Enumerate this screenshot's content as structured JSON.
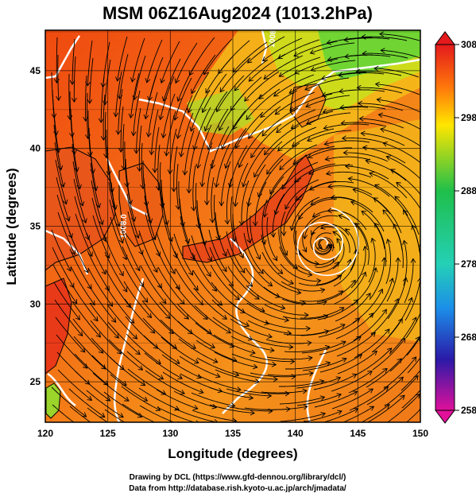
{
  "figure": {
    "title": "MSM 06Z16Aug2024 (1013.2hPa)",
    "xlabel": "Longitude (degrees)",
    "ylabel": "Latitude  (degrees)",
    "credit_line1": "Drawing by DCL (https://www.gfd-dennou.org/library/dcl/)",
    "credit_line2": "Data from http://database.rish.kyoto-u.ac.jp/arch/jmadata/"
  },
  "map": {
    "xlim": [
      120,
      150
    ],
    "ylim": [
      22.4,
      47.6
    ],
    "xticks": [
      "120",
      "125",
      "130",
      "135",
      "140",
      "145",
      "150"
    ],
    "yticks": [
      "25",
      "30",
      "35",
      "40",
      "45"
    ],
    "contour_labels": [
      "1008.0",
      "1008.0"
    ],
    "colorbar": {
      "range": [
        258,
        308
      ],
      "ticks": [
        "308",
        "298",
        "288",
        "278",
        "268",
        "258"
      ],
      "colors": [
        "#e0109a",
        "#2a1aa8",
        "#1c8fe8",
        "#24d0b6",
        "#1fbf4a",
        "#ffe600",
        "#ff7a0a",
        "#e41a1c"
      ]
    },
    "cyclone_center": {
      "lon": 142.3,
      "lat": 33.8
    }
  },
  "chart_data": {
    "type": "heatmap",
    "title": "MSM 06Z16Aug2024 (1013.2hPa)",
    "xlabel": "Longitude (degrees)",
    "ylabel": "Latitude  (degrees)",
    "x_range": [
      120,
      150
    ],
    "y_range": [
      22.4,
      47.6
    ],
    "colorbar_range": [
      258,
      308
    ],
    "colorbar_ticks": [
      308,
      298,
      288,
      278,
      268,
      258
    ],
    "annotations": [
      "1008.0",
      "1008.0"
    ]
  }
}
